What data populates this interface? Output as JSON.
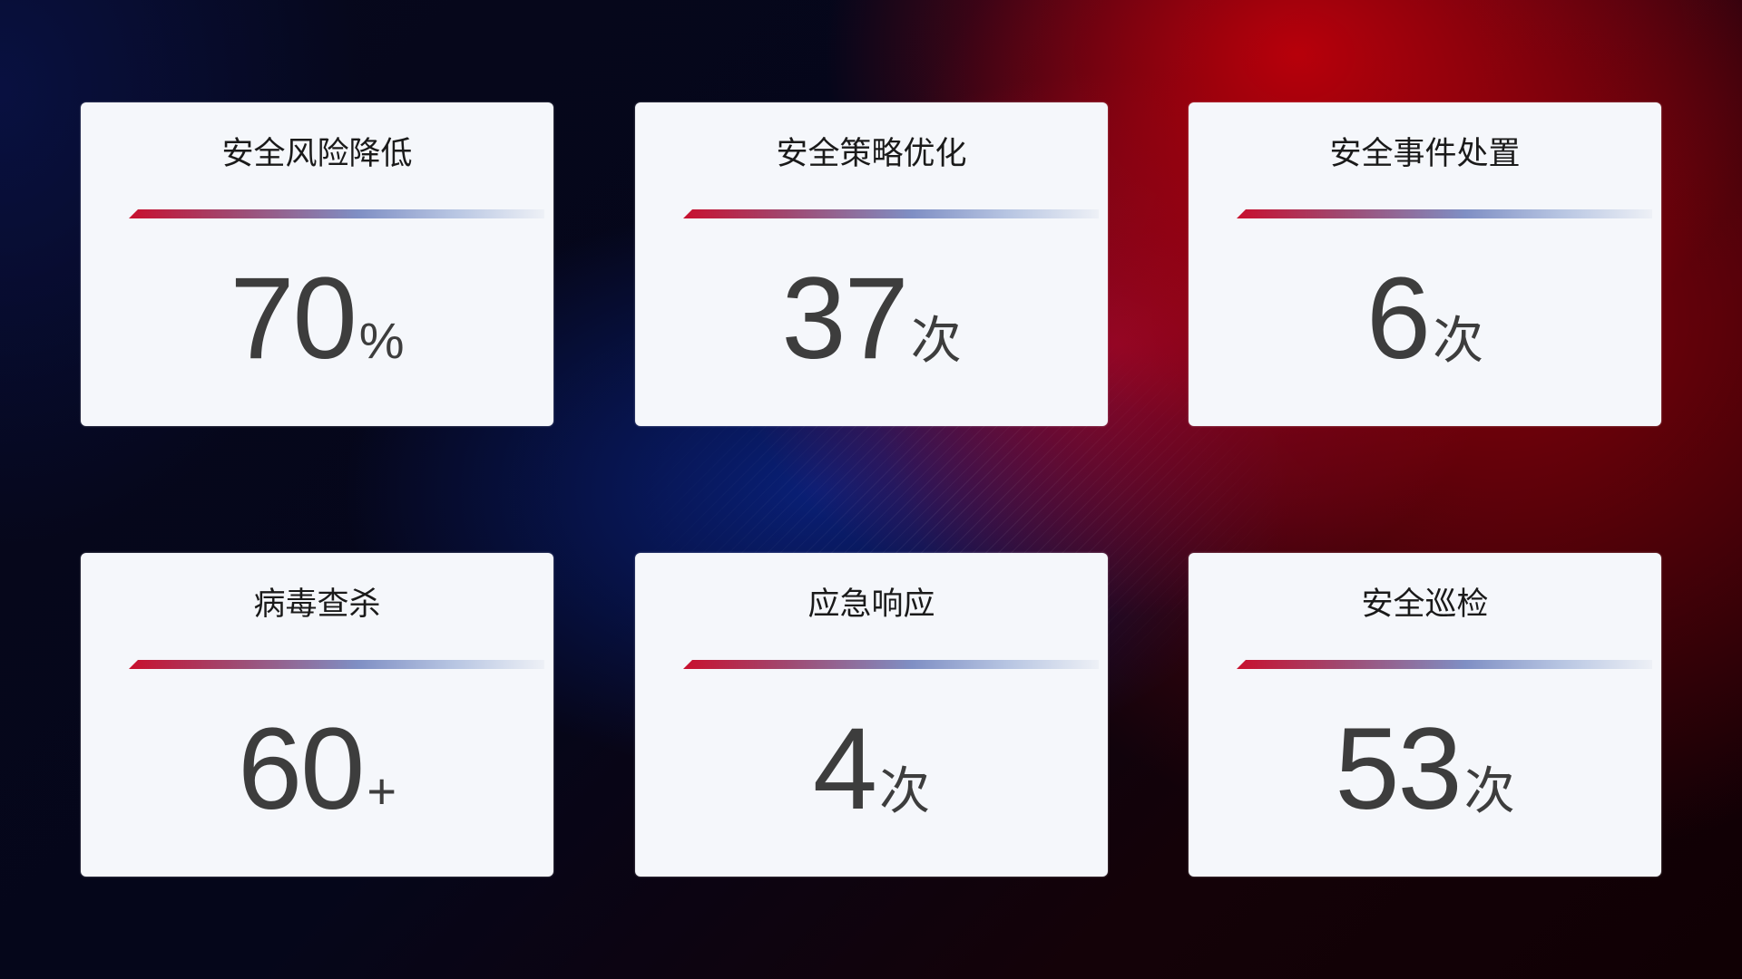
{
  "cards": [
    {
      "title": "安全风险降低",
      "value": "70",
      "unit": "%"
    },
    {
      "title": "安全策略优化",
      "value": "37",
      "unit": "次"
    },
    {
      "title": "安全事件处置",
      "value": "6",
      "unit": "次"
    },
    {
      "title": "病毒查杀",
      "value": "60",
      "unit": "+"
    },
    {
      "title": "应急响应",
      "value": "4",
      "unit": "次"
    },
    {
      "title": "安全巡检",
      "value": "53",
      "unit": "次"
    }
  ],
  "colors": {
    "accent_red": "#c8102e",
    "accent_blue": "#7f8fc4",
    "card_bg": "#f5f7fb",
    "value_text": "#3d3d3d"
  }
}
